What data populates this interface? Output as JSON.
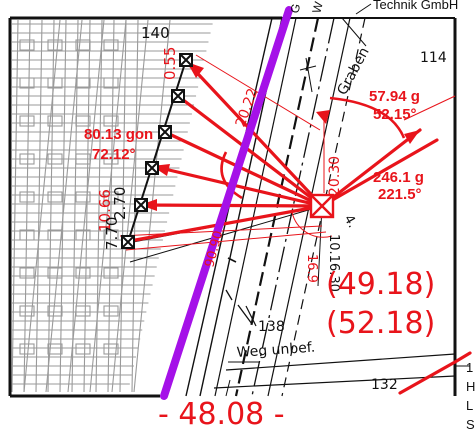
{
  "colors": {
    "background": "#ffffff",
    "frame": "#111111",
    "parcel_hatch": "#9a9a9a",
    "measurement": "#e8141b",
    "boundary_highlight": "#a511e8"
  },
  "header": {
    "company_text": "Technik GmbH",
    "corner_letter_1": "G",
    "corner_letter_2": "W"
  },
  "parcels": {
    "p140": "140",
    "p114": "114",
    "p138": "138",
    "p132": "132"
  },
  "labels": {
    "graben": "Graben",
    "weg": "Weg unbef."
  },
  "angles": {
    "left_gon": "80.13 gon",
    "left_deg": "72.12°",
    "upper_right_gon": "57.94 g",
    "upper_right_deg": "52.15°",
    "lower_right_gon": "246.1 g",
    "lower_right_deg": "221.5°"
  },
  "chain_measures": {
    "top": "0.55",
    "m2": "10.66",
    "m3": "2.70",
    "m4": "7.70",
    "diag": "20.22",
    "vert": "20.30",
    "rot1": "16.9",
    "rot2": "10.16.30",
    "rot3": "4.",
    "boundary_mark": "90.90"
  },
  "results": {
    "value1": "(49.18)",
    "value2": "(52.18)",
    "bottom_distance": "- 48.08 -"
  },
  "right_margin": {
    "legend_1": "1",
    "legend_h": "H",
    "legend_l": "L",
    "legend_s": "S"
  }
}
